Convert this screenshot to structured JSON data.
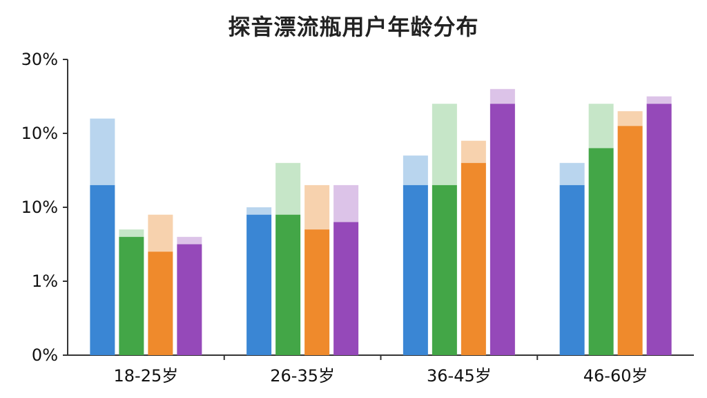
{
  "chart_data": {
    "type": "bar",
    "title": "探音漂流瓶用户年龄分布",
    "xlabel": "",
    "ylabel": "",
    "y_tick_labels": [
      "0%",
      "1%",
      "10%",
      "10%",
      "30%"
    ],
    "categories": [
      "18-25岁",
      "26-35岁",
      "36-45岁",
      "46-60岁"
    ],
    "series": [
      {
        "color": "#3a86d4",
        "light_color": "#b9d5ee",
        "values": [
          2.3,
          1.9,
          2.3,
          2.3
        ],
        "upper_values": [
          3.2,
          2.0,
          2.7,
          2.6
        ]
      },
      {
        "color": "#43a647",
        "light_color": "#c6e6c8",
        "values": [
          1.6,
          1.9,
          2.3,
          2.8
        ],
        "upper_values": [
          1.7,
          2.6,
          3.4,
          3.4
        ]
      },
      {
        "color": "#ef8a2c",
        "light_color": "#f7d2ae",
        "values": [
          1.4,
          1.7,
          2.6,
          3.1
        ],
        "upper_values": [
          1.9,
          2.3,
          2.9,
          3.3
        ]
      },
      {
        "color": "#9549b9",
        "light_color": "#dcc3e8",
        "values": [
          1.5,
          1.8,
          3.4,
          3.4
        ],
        "upper_values": [
          1.6,
          2.3,
          3.6,
          3.5
        ]
      }
    ],
    "grid": false,
    "legend": "none"
  }
}
